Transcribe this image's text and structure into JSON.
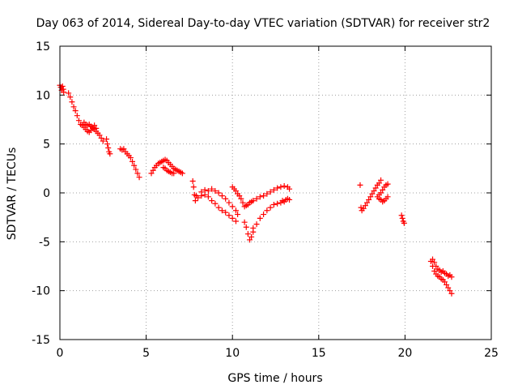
{
  "chart_data": {
    "type": "scatter",
    "title": "Day 063 of 2014, Sidereal Day-to-day VTEC variation (SDTVAR) for receiver str2",
    "xlabel": "GPS time / hours",
    "ylabel": "SDTVAR / TECUs",
    "xlim": [
      0,
      25
    ],
    "ylim": [
      -15,
      15
    ],
    "xticks": [
      0,
      5,
      10,
      15,
      20,
      25
    ],
    "yticks": [
      -15,
      -10,
      -5,
      0,
      5,
      10,
      15
    ],
    "xtick_labels": [
      "0",
      "5",
      "10",
      "15",
      "20",
      "25"
    ],
    "ytick_labels": [
      "-15",
      "-10",
      "-5",
      "0",
      "5",
      "10",
      "15"
    ],
    "grid": true,
    "marker": "+",
    "color": "#ff0000",
    "segments": [
      {
        "x": [
          0.0,
          0.05,
          0.1,
          0.15,
          0.2,
          0.22
        ],
        "y": [
          11.0,
          10.8,
          10.5,
          10.9,
          10.6,
          10.3
        ]
      },
      {
        "x": [
          0.5,
          0.6,
          0.7,
          0.8,
          0.9,
          1.0,
          1.1,
          1.2,
          1.3,
          1.4,
          1.5,
          1.6,
          1.7,
          1.8,
          1.9,
          2.0,
          2.1,
          2.2,
          2.3,
          2.4,
          2.5
        ],
        "y": [
          10.2,
          9.8,
          9.3,
          8.8,
          8.4,
          7.9,
          7.4,
          7.0,
          6.9,
          6.7,
          6.5,
          6.3,
          6.2,
          6.4,
          6.6,
          6.5,
          6.3,
          6.1,
          5.9,
          5.6,
          5.3
        ]
      },
      {
        "x": [
          1.4,
          1.5,
          1.6,
          1.7,
          1.8,
          1.9,
          2.0,
          2.1
        ],
        "y": [
          7.2,
          7.0,
          6.9,
          7.0,
          6.8,
          6.7,
          6.9,
          6.6
        ]
      },
      {
        "x": [
          2.7,
          2.75,
          2.8,
          2.85,
          2.9
        ],
        "y": [
          5.5,
          5.0,
          4.6,
          4.2,
          4.0
        ]
      },
      {
        "x": [
          3.5,
          3.6,
          3.7,
          3.8,
          3.9,
          4.0,
          4.1,
          4.2,
          4.3,
          4.4,
          4.5,
          4.6
        ],
        "y": [
          4.5,
          4.4,
          4.5,
          4.2,
          4.0,
          3.8,
          3.6,
          3.2,
          2.8,
          2.4,
          2.0,
          1.6
        ]
      },
      {
        "x": [
          5.3,
          5.4,
          5.5,
          5.6,
          5.7,
          5.8,
          5.9,
          6.0,
          6.1,
          6.2,
          6.3,
          6.4,
          6.5,
          6.6,
          6.7,
          6.8,
          6.9,
          7.0,
          7.1
        ],
        "y": [
          2.0,
          2.3,
          2.6,
          2.8,
          3.0,
          3.1,
          3.2,
          3.3,
          3.4,
          3.3,
          3.1,
          2.9,
          2.7,
          2.5,
          2.4,
          2.3,
          2.2,
          2.1,
          2.0
        ]
      },
      {
        "x": [
          6.0,
          6.1,
          6.2,
          6.3,
          6.4,
          6.5,
          6.6
        ],
        "y": [
          2.6,
          2.5,
          2.3,
          2.2,
          2.1,
          2.0,
          2.0
        ]
      },
      {
        "x": [
          7.7,
          7.75,
          7.8,
          7.85,
          7.9,
          8.0,
          8.2,
          8.4,
          8.6,
          8.8,
          9.0,
          9.2,
          9.4,
          9.6,
          9.8,
          10.0,
          10.2
        ],
        "y": [
          1.2,
          0.6,
          -0.2,
          -0.8,
          -0.3,
          -0.5,
          -0.3,
          -0.2,
          -0.4,
          -0.8,
          -1.1,
          -1.5,
          -1.8,
          -2.0,
          -2.3,
          -2.6,
          -2.9
        ]
      },
      {
        "x": [
          8.2,
          8.4,
          8.6,
          8.8,
          9.0,
          9.2,
          9.4,
          9.6,
          9.8,
          10.0,
          10.2,
          10.3
        ],
        "y": [
          0.1,
          0.3,
          0.2,
          0.4,
          0.2,
          0.0,
          -0.3,
          -0.6,
          -1.0,
          -1.4,
          -1.8,
          -2.2
        ]
      },
      {
        "x": [
          10.0,
          10.1,
          10.2,
          10.3,
          10.4,
          10.5,
          10.6,
          10.7,
          10.8,
          10.9,
          11.0,
          11.1,
          11.2
        ],
        "y": [
          0.6,
          0.4,
          0.2,
          -0.1,
          -0.3,
          -0.6,
          -1.0,
          -1.4,
          -1.3,
          -1.2,
          -1.0,
          -0.9,
          -0.8
        ]
      },
      {
        "x": [
          10.7,
          10.8,
          10.9,
          11.0,
          11.1,
          11.2
        ],
        "y": [
          -3.0,
          -3.5,
          -4.2,
          -4.8,
          -4.5,
          -4.0
        ]
      },
      {
        "x": [
          11.2,
          11.4,
          11.6,
          11.8,
          12.0,
          12.2,
          12.4,
          12.6,
          12.8
        ],
        "y": [
          -3.6,
          -3.2,
          -2.6,
          -2.2,
          -1.8,
          -1.5,
          -1.2,
          -1.1,
          -1.0
        ]
      },
      {
        "x": [
          11.4,
          11.6,
          11.8,
          12.0,
          12.2,
          12.4,
          12.6,
          12.8,
          13.0,
          13.2,
          13.3
        ],
        "y": [
          -0.6,
          -0.4,
          -0.3,
          -0.1,
          0.1,
          0.3,
          0.5,
          0.6,
          0.7,
          0.6,
          0.4
        ]
      },
      {
        "x": [
          12.9,
          13.0,
          13.1,
          13.2,
          13.3
        ],
        "y": [
          -0.8,
          -0.9,
          -0.7,
          -0.6,
          -0.7
        ]
      },
      {
        "x": [
          17.4,
          17.45,
          17.5,
          17.6,
          17.7,
          17.8,
          17.9,
          18.0,
          18.1,
          18.2,
          18.3,
          18.4,
          18.5,
          18.6
        ],
        "y": [
          0.8,
          -1.5,
          -1.8,
          -1.6,
          -1.3,
          -1.0,
          -0.7,
          -0.4,
          -0.1,
          0.2,
          0.5,
          0.8,
          1.0,
          1.3
        ]
      },
      {
        "x": [
          18.4,
          18.5,
          18.6,
          18.7,
          18.8,
          18.9,
          19.0
        ],
        "y": [
          -0.4,
          -0.2,
          0.0,
          0.3,
          0.6,
          0.8,
          0.9
        ]
      },
      {
        "x": [
          18.5,
          18.6,
          18.7,
          18.8,
          18.9,
          19.0
        ],
        "y": [
          -0.6,
          -0.7,
          -0.9,
          -0.8,
          -0.6,
          -0.4
        ]
      },
      {
        "x": [
          19.8,
          19.85,
          19.9,
          19.95
        ],
        "y": [
          -2.3,
          -2.6,
          -2.9,
          -3.1
        ]
      },
      {
        "x": [
          21.5,
          21.6,
          21.7,
          21.8,
          21.9,
          22.0,
          22.1,
          22.2,
          22.3,
          22.4,
          22.5,
          22.6,
          22.7
        ],
        "y": [
          -7.0,
          -7.5,
          -8.0,
          -8.3,
          -8.5,
          -8.6,
          -8.8,
          -8.9,
          -9.1,
          -9.4,
          -9.7,
          -10.0,
          -10.3
        ]
      },
      {
        "x": [
          21.6,
          21.7,
          21.8,
          21.9,
          22.0,
          22.1,
          22.2,
          22.3,
          22.4,
          22.5,
          22.6,
          22.7
        ],
        "y": [
          -6.8,
          -7.1,
          -7.5,
          -7.8,
          -7.9,
          -8.1,
          -8.0,
          -8.2,
          -8.3,
          -8.5,
          -8.4,
          -8.6
        ]
      }
    ]
  }
}
